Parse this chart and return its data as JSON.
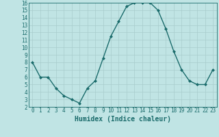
{
  "title": "",
  "xlabel": "Humidex (Indice chaleur)",
  "x": [
    0,
    1,
    2,
    3,
    4,
    5,
    6,
    7,
    8,
    9,
    10,
    11,
    12,
    13,
    14,
    15,
    16,
    17,
    18,
    19,
    20,
    21,
    22,
    23
  ],
  "y": [
    8,
    6,
    6,
    4.5,
    3.5,
    3,
    2.5,
    4.5,
    5.5,
    8.5,
    11.5,
    13.5,
    15.5,
    16,
    16,
    16,
    15,
    12.5,
    9.5,
    7,
    5.5,
    5,
    5,
    7
  ],
  "line_color": "#1a6b6b",
  "bg_color": "#c0e4e4",
  "grid_color": "#a8cccc",
  "ylim": [
    2,
    16
  ],
  "xlim": [
    -0.5,
    23.5
  ],
  "yticks": [
    2,
    3,
    4,
    5,
    6,
    7,
    8,
    9,
    10,
    11,
    12,
    13,
    14,
    15,
    16
  ],
  "xticks": [
    0,
    1,
    2,
    3,
    4,
    5,
    6,
    7,
    8,
    9,
    10,
    11,
    12,
    13,
    14,
    15,
    16,
    17,
    18,
    19,
    20,
    21,
    22,
    23
  ],
  "marker": "D",
  "marker_size": 2,
  "line_width": 1.0,
  "xlabel_fontsize": 7,
  "tick_fontsize": 5.5
}
